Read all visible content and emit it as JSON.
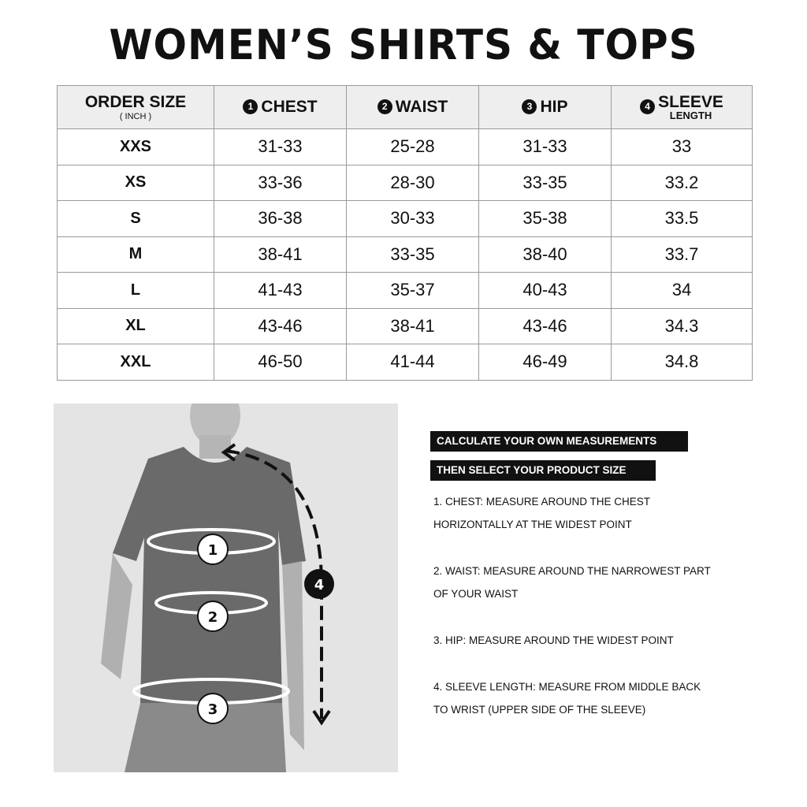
{
  "title": "WOMEN’S SHIRTS & TOPS",
  "table": {
    "headers": [
      {
        "label": "ORDER SIZE",
        "sub": "( INCH )"
      },
      {
        "num": "1",
        "label": "CHEST"
      },
      {
        "num": "2",
        "label": "WAIST"
      },
      {
        "num": "3",
        "label": "HIP"
      },
      {
        "num": "4",
        "label": "SLEEVE",
        "sub": "LENGTH"
      }
    ],
    "rows": [
      [
        "XXS",
        "31-33",
        "25-28",
        "31-33",
        "33"
      ],
      [
        "XS",
        "33-36",
        "28-30",
        "33-35",
        "33.2"
      ],
      [
        "S",
        "36-38",
        "30-33",
        "35-38",
        "33.5"
      ],
      [
        "M",
        "38-41",
        "33-35",
        "38-40",
        "33.7"
      ],
      [
        "L",
        "41-43",
        "35-37",
        "40-43",
        "34"
      ],
      [
        "XL",
        "43-46",
        "38-41",
        "43-46",
        "34.3"
      ],
      [
        "XXL",
        "46-50",
        "41-44",
        "46-49",
        "34.8"
      ]
    ]
  },
  "figure": {
    "markers": [
      "1",
      "2",
      "3",
      "4"
    ]
  },
  "instructions": {
    "banner1": "CALCULATE YOUR OWN MEASUREMENTS",
    "banner2": "THEN SELECT YOUR PRODUCT SIZE",
    "lines": [
      "1. CHEST: MEASURE AROUND THE CHEST",
      "HORIZONTALLY AT THE WIDEST POINT",
      "2. WAIST: MEASURE AROUND THE NARROWEST PART",
      "OF YOUR WAIST",
      "3. HIP: MEASURE AROUND THE WIDEST POINT",
      "4. SLEEVE LENGTH: MEASURE FROM MIDDLE BACK",
      "TO WRIST (UPPER SIDE OF THE SLEEVE)"
    ]
  }
}
